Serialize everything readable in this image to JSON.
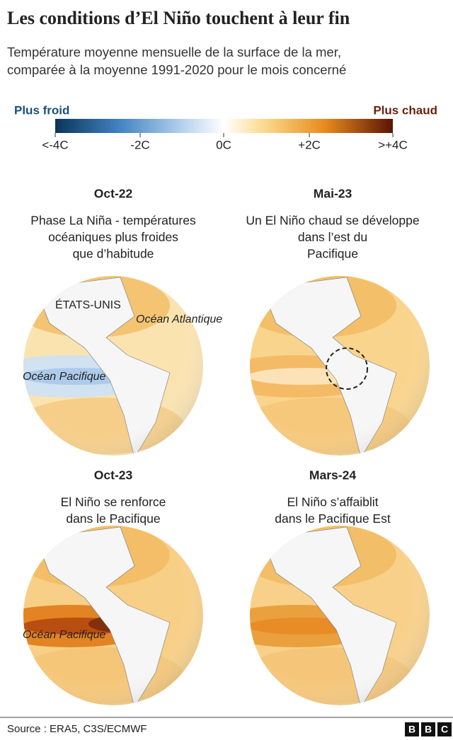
{
  "header": {
    "title": "Les conditions d’El Niño touchent à leur fin",
    "subtitle_lines": [
      "Température moyenne mensuelle de la surface de la mer,",
      "comparée à la moyenne 1991-2020 pour le mois concerné"
    ]
  },
  "legend": {
    "cold_label": "Plus froid",
    "warm_label": "Plus chaud",
    "ticks": [
      "<-4C",
      "-2C",
      "0C",
      "+2C",
      ">+4C"
    ]
  },
  "panels": [
    {
      "date": "Oct-22",
      "caption_lines": [
        "Phase La Niña - températures",
        "océaniques plus froides",
        "que d’habitude"
      ],
      "map_labels": [
        "ÉTATS-UNIS",
        "Océan Atlantique",
        "Océan Pacifique"
      ]
    },
    {
      "date": "Mai-23",
      "caption_lines": [
        "Un El Niño chaud se développe",
        "dans l’est du",
        "Pacifique"
      ],
      "map_labels": []
    },
    {
      "date": "Oct-23",
      "caption_lines": [
        "El Niño se renforce",
        "dans le Pacifique"
      ],
      "map_labels": [
        "Océan Pacifique"
      ]
    },
    {
      "date": "Mars-24",
      "caption_lines": [
        "El Niño s’affaiblit",
        "dans le Pacifique Est"
      ],
      "map_labels": []
    }
  ],
  "footer": {
    "source": "Source : ERA5, C3S/ECMWF",
    "logo": [
      "B",
      "B",
      "C"
    ]
  }
}
